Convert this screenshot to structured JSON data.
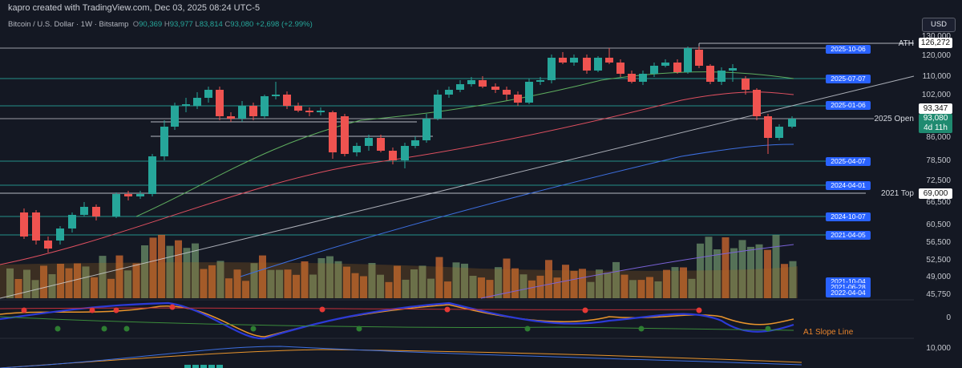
{
  "header": {
    "credit": "kapro created with TradingView.com, Dec 03, 2025 08:24 UTC-5",
    "symbol": "Bitcoin / U.S. Dollar · 1W · Bitstamp",
    "open_key": "O",
    "open": "90,369",
    "high_key": "H",
    "high": "93,977",
    "low_key": "L",
    "low": "83,814",
    "close_key": "C",
    "close": "93,080",
    "change": "+2,698 (+2.99%)"
  },
  "currency_button": "USD",
  "price_axis": [
    "130,000",
    "120,000",
    "110,000",
    "102,000",
    "86,000",
    "78,500",
    "72,500",
    "66,500",
    "60,500",
    "56,500",
    "52,500",
    "49,000",
    "45,750"
  ],
  "osc_axis": [
    "0",
    "10,000"
  ],
  "annotations": {
    "ath_label": "ATH",
    "ath_price": "126,272",
    "current_price": "93,347",
    "open_label": "2025 Open",
    "last_price": "93,080",
    "countdown": "4d 11h",
    "top_label": "2021 Top",
    "top_price": "69,000",
    "slope_label": "A1 Slope Line"
  },
  "levels": [
    {
      "tag": "2025-10-06"
    },
    {
      "tag": "2025-07-07"
    },
    {
      "tag": "2025-01-06"
    },
    {
      "tag": "2025-04-07"
    },
    {
      "tag": "2024-04-01"
    },
    {
      "tag": "2024-10-07"
    },
    {
      "tag": "2021-04-05"
    },
    {
      "tag": "2021-10-04"
    },
    {
      "tag": "2021-06-28"
    },
    {
      "tag": "2022-04-04"
    }
  ],
  "colors": {
    "up": "#26a69a",
    "down": "#ef5350",
    "tag": "#2962ff",
    "background": "#141823"
  }
}
